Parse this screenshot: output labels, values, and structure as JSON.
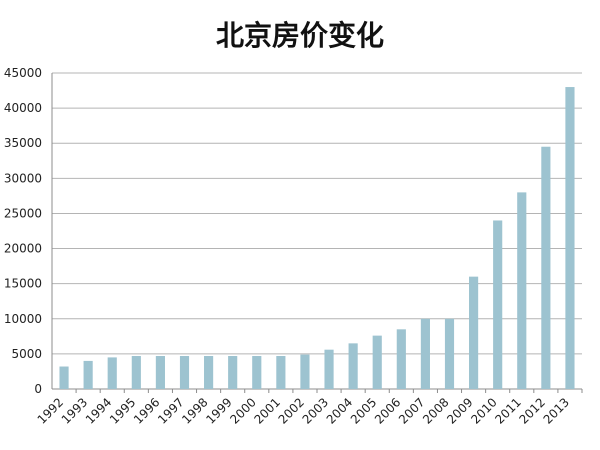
{
  "chart_data": {
    "type": "bar",
    "title": "北京房价变化",
    "categories": [
      "1992",
      "1993",
      "1994",
      "1995",
      "1996",
      "1997",
      "1998",
      "1999",
      "2000",
      "2001",
      "2002",
      "2003",
      "2004",
      "2005",
      "2006",
      "2007",
      "2008",
      "2009",
      "2010",
      "2011",
      "2012",
      "2013"
    ],
    "values": [
      3200,
      4000,
      4500,
      4700,
      4700,
      4700,
      4700,
      4700,
      4700,
      4700,
      4900,
      5600,
      6500,
      7600,
      8500,
      10000,
      10000,
      16000,
      24000,
      28000,
      34500,
      43000
    ],
    "ylim": [
      0,
      45000
    ],
    "yticks": [
      0,
      5000,
      10000,
      15000,
      20000,
      25000,
      30000,
      35000,
      40000,
      45000
    ],
    "grid": true,
    "bar_color": "#9dc3d0",
    "grid_color": "#b4b4b4"
  }
}
